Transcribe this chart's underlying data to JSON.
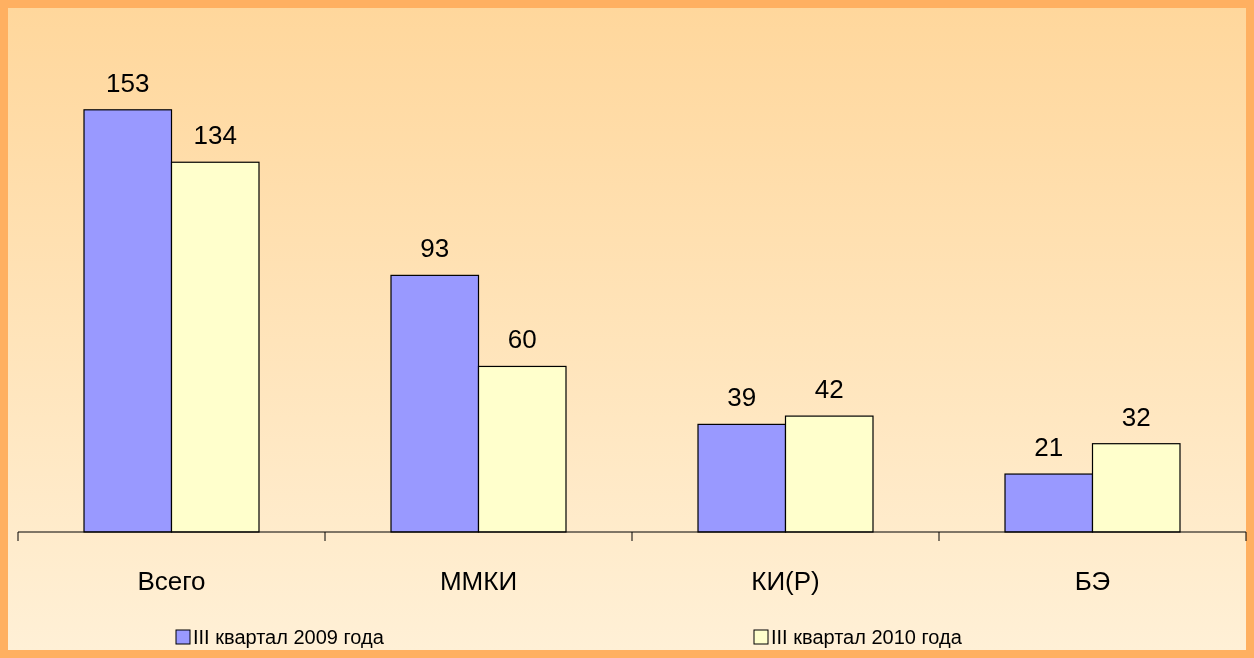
{
  "chart_data": {
    "type": "bar",
    "categories": [
      "Всего",
      "ММКИ",
      "КИ(Р)",
      "БЭ"
    ],
    "series": [
      {
        "name": "III квартал 2009 года",
        "color": "#9999ff",
        "values": [
          153,
          93,
          39,
          21
        ]
      },
      {
        "name": "III квартал 2010 года",
        "color": "#ffffcc",
        "values": [
          134,
          60,
          42,
          32
        ]
      }
    ],
    "data_labels": true,
    "legend": "bottom"
  }
}
